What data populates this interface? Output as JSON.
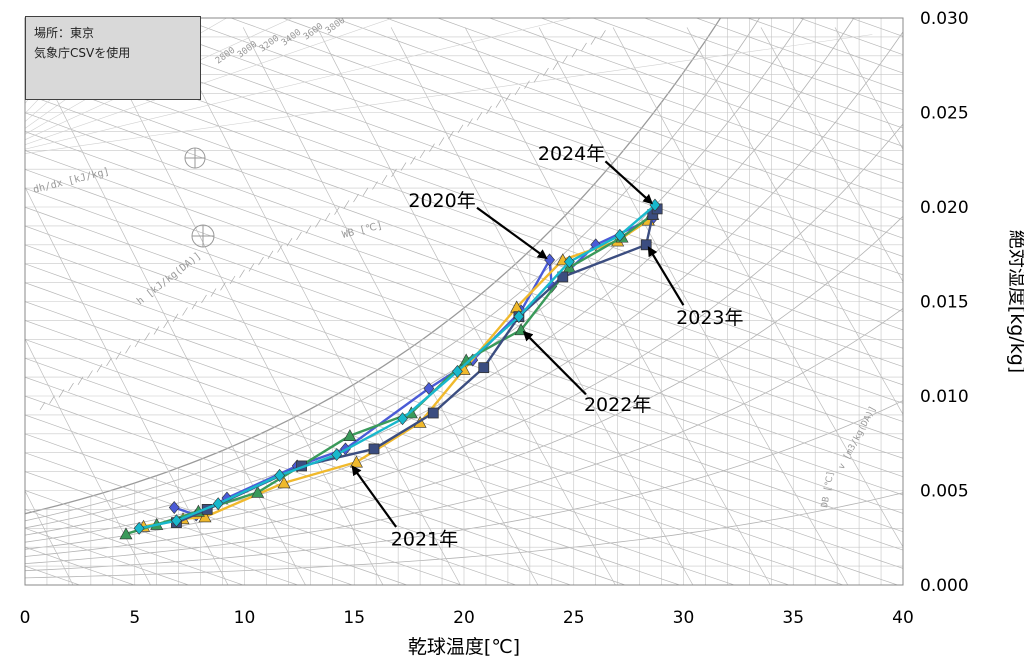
{
  "infobox": {
    "line1": "場所：東京",
    "line2": "気象庁CSVを使用"
  },
  "chart_data": {
    "type": "line",
    "title": "",
    "xlabel": "乾球温度[℃]",
    "ylabel": "絶対湿度[kg/kg]",
    "xlim": [
      0,
      40
    ],
    "ylim": [
      0,
      0.03
    ],
    "x_ticks": [
      "0",
      "5",
      "10",
      "15",
      "20",
      "25",
      "30",
      "35",
      "40"
    ],
    "y_ticks": [
      "0.000",
      "0.005",
      "0.010",
      "0.015",
      "0.020",
      "0.025",
      "0.030"
    ],
    "background": "psychrometric chart grid",
    "psychro_labels": {
      "enthalpy_diff": "dh/dx [kJ/kg]",
      "enthalpy": "h [kJ/kg(DA)]",
      "wet_bulb": "WB [℃]",
      "dry_bulb": "DB [℃]",
      "specific_volume": "v [m3/kg(DA)]",
      "ratio_scale": [
        "2800",
        "3000",
        "3200",
        "3400",
        "3600",
        "3800"
      ]
    },
    "series": [
      {
        "name": "2020年",
        "color": "#4a5bd6",
        "marker": "diamond",
        "points": [
          [
            6.8,
            0.0041
          ],
          [
            7.8,
            0.0037
          ],
          [
            9.2,
            0.0046
          ],
          [
            12.4,
            0.0063
          ],
          [
            14.6,
            0.0072
          ],
          [
            18.4,
            0.0104
          ],
          [
            20.4,
            0.0119
          ],
          [
            22.6,
            0.0145
          ],
          [
            23.9,
            0.0172
          ],
          [
            24.0,
            0.0158
          ],
          [
            26.0,
            0.018
          ],
          [
            28.6,
            0.0194
          ]
        ]
      },
      {
        "name": "2021年",
        "color": "#f0b92c",
        "marker": "triangle",
        "points": [
          [
            5.4,
            0.0031
          ],
          [
            7.2,
            0.0035
          ],
          [
            8.2,
            0.0036
          ],
          [
            11.8,
            0.0054
          ],
          [
            15.1,
            0.0065
          ],
          [
            18.0,
            0.0086
          ],
          [
            20.0,
            0.0114
          ],
          [
            22.4,
            0.0147
          ],
          [
            24.5,
            0.0172
          ],
          [
            27.0,
            0.0182
          ],
          [
            28.4,
            0.0193
          ]
        ]
      },
      {
        "name": "2022年",
        "color": "#3a9a5a",
        "marker": "triangle",
        "points": [
          [
            4.6,
            0.0027
          ],
          [
            6.0,
            0.0032
          ],
          [
            7.9,
            0.0039
          ],
          [
            10.6,
            0.0049
          ],
          [
            14.8,
            0.0079
          ],
          [
            17.6,
            0.0091
          ],
          [
            20.1,
            0.0119
          ],
          [
            22.6,
            0.0135
          ],
          [
            24.8,
            0.0168
          ],
          [
            27.2,
            0.0184
          ],
          [
            28.6,
            0.0196
          ]
        ]
      },
      {
        "name": "2023年",
        "color": "#3b4d80",
        "marker": "square",
        "points": [
          [
            6.9,
            0.0033
          ],
          [
            8.3,
            0.004
          ],
          [
            12.6,
            0.0063
          ],
          [
            15.9,
            0.0072
          ],
          [
            18.6,
            0.0091
          ],
          [
            20.9,
            0.0115
          ],
          [
            22.5,
            0.0142
          ],
          [
            24.5,
            0.0163
          ],
          [
            28.3,
            0.018
          ],
          [
            28.6,
            0.0196
          ],
          [
            28.8,
            0.0199
          ]
        ]
      },
      {
        "name": "2024年",
        "color": "#18b8cc",
        "marker": "diamond",
        "points": [
          [
            5.2,
            0.003
          ],
          [
            6.9,
            0.0034
          ],
          [
            8.8,
            0.0043
          ],
          [
            11.6,
            0.0058
          ],
          [
            14.2,
            0.0069
          ],
          [
            17.2,
            0.0088
          ],
          [
            19.7,
            0.0113
          ],
          [
            22.5,
            0.0142
          ],
          [
            24.8,
            0.0171
          ],
          [
            27.1,
            0.0185
          ],
          [
            28.7,
            0.0201
          ]
        ]
      }
    ],
    "annotations": [
      {
        "text": "2024年",
        "series": "2024年",
        "arrow_to": [
          28.7,
          0.0201
        ],
        "label_at": [
          24.9,
          0.0225
        ]
      },
      {
        "text": "2020年",
        "series": "2020年",
        "arrow_to": [
          23.9,
          0.0172
        ],
        "label_at": [
          19.0,
          0.02
        ]
      },
      {
        "text": "2023年",
        "series": "2023年",
        "arrow_to": [
          28.3,
          0.018
        ],
        "label_at": [
          31.2,
          0.0138
        ]
      },
      {
        "text": "2022年",
        "series": "2022年",
        "arrow_to": [
          22.6,
          0.0135
        ],
        "label_at": [
          27.0,
          0.0092
        ]
      },
      {
        "text": "2021年",
        "series": "2021年",
        "arrow_to": [
          14.8,
          0.0064
        ],
        "label_at": [
          18.2,
          0.0021
        ]
      }
    ]
  }
}
